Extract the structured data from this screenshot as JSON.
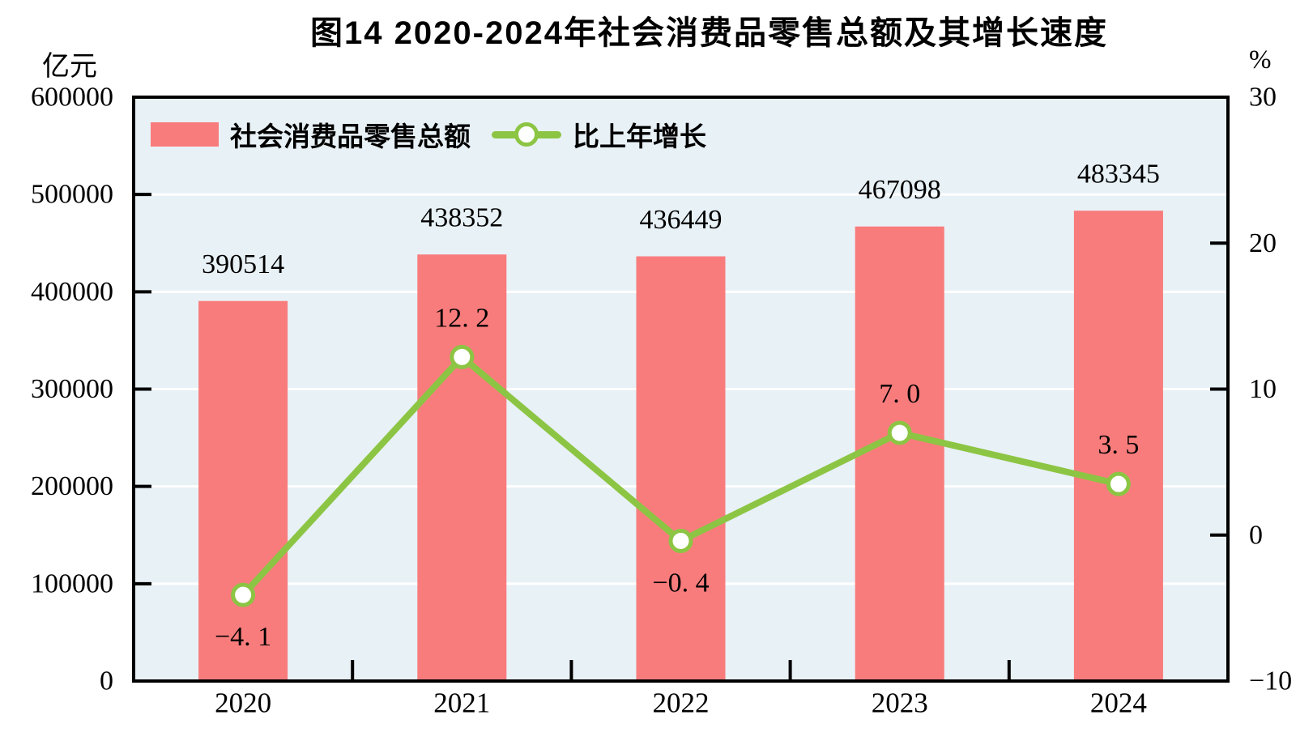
{
  "chart": {
    "title": "图14  2020-2024年社会消费品零售总额及其增长速度"
  },
  "chart_data": {
    "type": "combo-bar-line",
    "title": "图14  2020-2024年社会消费品零售总额及其增长速度",
    "categories": [
      "2020",
      "2021",
      "2022",
      "2023",
      "2024"
    ],
    "series": [
      {
        "name": "社会消费品零售总额",
        "type": "bar",
        "axis": "left",
        "values": [
          390514,
          438352,
          436449,
          467098,
          483345
        ],
        "labels": [
          "390514",
          "438352",
          "436449",
          "467098",
          "483345"
        ],
        "color": "#F97C7C"
      },
      {
        "name": "比上年增长",
        "type": "line",
        "axis": "right",
        "values": [
          -4.1,
          12.2,
          -0.4,
          7.0,
          3.5
        ],
        "labels": [
          "−4. 1",
          "12. 2",
          "−0. 4",
          "7. 0",
          "3. 5"
        ],
        "label_side": [
          "below",
          "above",
          "below",
          "above",
          "above"
        ],
        "color": "#8CC544",
        "marker": "circle-white-fill-green-ring"
      }
    ],
    "left_axis": {
      "unit": "亿元",
      "min": 0,
      "max": 600000,
      "step": 100000,
      "tick_labels": [
        "0",
        "100000",
        "200000",
        "300000",
        "400000",
        "500000",
        "600000"
      ]
    },
    "right_axis": {
      "unit": "%",
      "min": -10,
      "max": 30,
      "step": 10,
      "tick_labels": [
        "−10",
        "0",
        "10",
        "20",
        "30"
      ]
    },
    "grid": "on",
    "grid_color": "#FFFFFF",
    "plot_bg": "#E8F1F6",
    "axis_color": "#000000",
    "legend_position": "top-left-inside"
  }
}
